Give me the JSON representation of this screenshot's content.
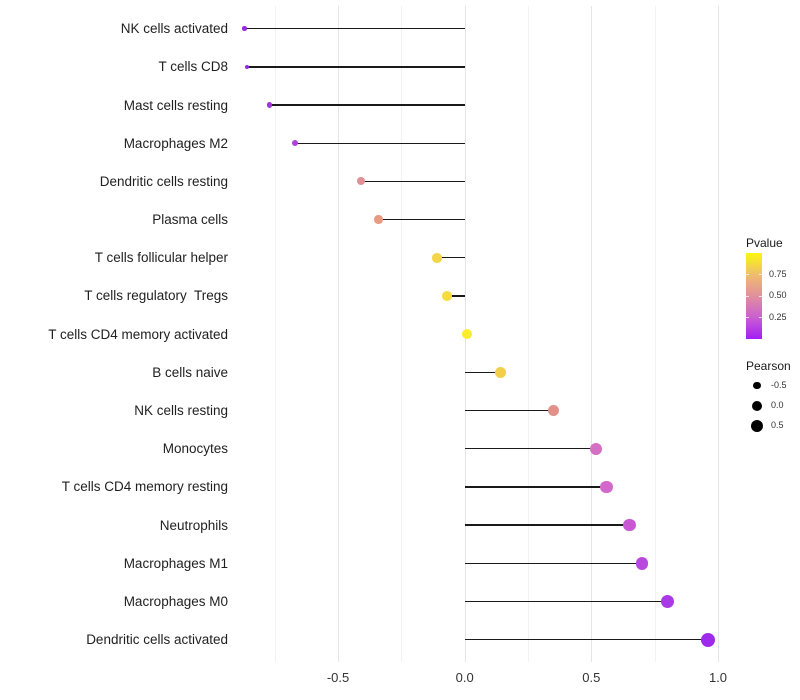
{
  "chart_data": {
    "type": "lollipop",
    "orientation": "horizontal",
    "title": "",
    "xlabel": "",
    "ylabel": "",
    "x_axis": {
      "tick_labels": [
        "-0.5",
        "0.0",
        "0.5",
        "1.0"
      ],
      "tick_values": [
        -0.5,
        0.0,
        0.5,
        1.0
      ],
      "minor_tick_values": [
        -0.75,
        -0.25,
        0.25,
        0.75
      ],
      "range": [
        -0.93,
        1.07
      ],
      "grid": "vertical major and minor, light grey"
    },
    "value_encoding": {
      "x_and_size": "Pearson correlation",
      "color": "Pvalue (purple = low, yellow = high)"
    },
    "rows": [
      {
        "label": "NK cells activated",
        "pearson": -0.87,
        "dot_color": "#9A28E3",
        "dot_diameter": 4.6
      },
      {
        "label": "T cells CD8",
        "pearson": -0.86,
        "dot_color": "#9A28E3",
        "dot_diameter": 4.6
      },
      {
        "label": "Mast cells resting",
        "pearson": -0.77,
        "dot_color": "#A234E0",
        "dot_diameter": 5.4
      },
      {
        "label": "Macrophages M2",
        "pearson": -0.67,
        "dot_color": "#AE41DC",
        "dot_diameter": 6.4
      },
      {
        "label": "Dendritic cells resting",
        "pearson": -0.41,
        "dot_color": "#E28F97",
        "dot_diameter": 8.0
      },
      {
        "label": "Plasma cells",
        "pearson": -0.34,
        "dot_color": "#E99B81",
        "dot_diameter": 8.4
      },
      {
        "label": "T cells follicular helper",
        "pearson": -0.11,
        "dot_color": "#F4D548",
        "dot_diameter": 9.6
      },
      {
        "label": "T cells regulatory  Tregs",
        "pearson": -0.07,
        "dot_color": "#F6DC3E",
        "dot_diameter": 9.8
      },
      {
        "label": "T cells CD4 memory activated",
        "pearson": 0.01,
        "dot_color": "#FBEC2E",
        "dot_diameter": 10.4
      },
      {
        "label": "B cells naive",
        "pearson": 0.14,
        "dot_color": "#F2CE4B",
        "dot_diameter": 11.0
      },
      {
        "label": "NK cells resting",
        "pearson": 0.35,
        "dot_color": "#E2908A",
        "dot_diameter": 11.6
      },
      {
        "label": "Monocytes",
        "pearson": 0.52,
        "dot_color": "#D56FC4",
        "dot_diameter": 12.0
      },
      {
        "label": "T cells CD4 memory resting",
        "pearson": 0.56,
        "dot_color": "#D268CB",
        "dot_diameter": 12.2
      },
      {
        "label": "Neutrophils",
        "pearson": 0.65,
        "dot_color": "#C757D3",
        "dot_diameter": 12.6
      },
      {
        "label": "Macrophages M1",
        "pearson": 0.7,
        "dot_color": "#B948DE",
        "dot_diameter": 12.8
      },
      {
        "label": "Macrophages M0",
        "pearson": 0.8,
        "dot_color": "#AA3AE6",
        "dot_diameter": 13.4
      },
      {
        "label": "Dendritic cells activated",
        "pearson": 0.96,
        "dot_color": "#9D2BEC",
        "dot_diameter": 14.0
      }
    ],
    "legend_position": "right"
  },
  "legend": {
    "pvalue": {
      "title": "Pvalue",
      "tick_labels": [
        "0.75",
        "0.50",
        "0.25"
      ],
      "gradient_stops_bottom_to_top": [
        {
          "color": "#A21EF5",
          "pct": 0
        },
        {
          "color": "#C95FD2",
          "pct": 25
        },
        {
          "color": "#E18F9D",
          "pct": 50
        },
        {
          "color": "#EFBD6C",
          "pct": 75
        },
        {
          "color": "#F8E52C",
          "pct": 92
        },
        {
          "color": "#FBF515",
          "pct": 100
        }
      ]
    },
    "pearson": {
      "title": "Pearson",
      "entries": [
        {
          "label": "-0.5",
          "diameter": 7.4
        },
        {
          "label": "0.0",
          "diameter": 10.0
        },
        {
          "label": "0.5",
          "diameter": 12.0
        }
      ],
      "dot_color": "#000000"
    }
  }
}
